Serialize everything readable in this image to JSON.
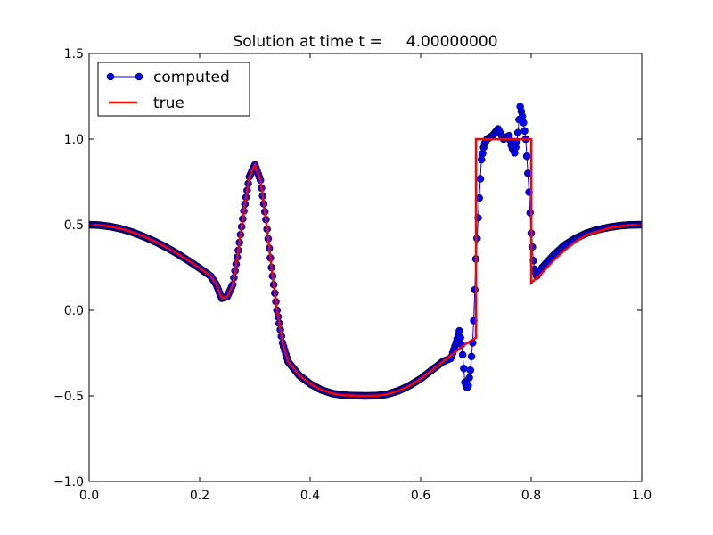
{
  "chart_data": {
    "type": "line",
    "title": "Solution at time t =     4.00000000",
    "xlabel": "",
    "ylabel": "",
    "xlim": [
      0.0,
      1.0
    ],
    "ylim": [
      -1.0,
      1.5
    ],
    "xticks": [
      0.0,
      0.2,
      0.4,
      0.6,
      0.8,
      1.0
    ],
    "xtick_labels": [
      "0.0",
      "0.2",
      "0.4",
      "0.6",
      "0.8",
      "1.0"
    ],
    "yticks": [
      -1.0,
      -0.5,
      0.0,
      0.5,
      1.0,
      1.5
    ],
    "ytick_labels": [
      "−1.0",
      "−0.5",
      "0.0",
      "0.5",
      "1.0",
      "1.5"
    ],
    "grid": false,
    "legend": {
      "position": "top-left"
    },
    "series": [
      {
        "name": "computed",
        "style": "line-with-circle-markers",
        "color": "#0000ff",
        "marker_edge": "#000000",
        "x": [
          0.0,
          0.02,
          0.04,
          0.06,
          0.08,
          0.1,
          0.12,
          0.14,
          0.16,
          0.18,
          0.2,
          0.22,
          0.23,
          0.24,
          0.25,
          0.26,
          0.27,
          0.28,
          0.29,
          0.3,
          0.31,
          0.32,
          0.33,
          0.34,
          0.35,
          0.36,
          0.38,
          0.4,
          0.42,
          0.44,
          0.46,
          0.48,
          0.5,
          0.52,
          0.54,
          0.56,
          0.58,
          0.6,
          0.62,
          0.64,
          0.655,
          0.665,
          0.67,
          0.675,
          0.68,
          0.685,
          0.69,
          0.695,
          0.7,
          0.705,
          0.71,
          0.715,
          0.72,
          0.73,
          0.74,
          0.75,
          0.76,
          0.765,
          0.77,
          0.775,
          0.78,
          0.785,
          0.79,
          0.795,
          0.8,
          0.805,
          0.81,
          0.82,
          0.84,
          0.86,
          0.88,
          0.9,
          0.92,
          0.94,
          0.96,
          0.98,
          1.0
        ],
        "y": [
          0.5,
          0.497,
          0.488,
          0.474,
          0.454,
          0.429,
          0.4,
          0.367,
          0.33,
          0.289,
          0.246,
          0.2,
          0.15,
          0.07,
          0.08,
          0.15,
          0.35,
          0.58,
          0.78,
          0.85,
          0.76,
          0.53,
          0.25,
          0.0,
          -0.19,
          -0.3,
          -0.38,
          -0.43,
          -0.465,
          -0.486,
          -0.496,
          -0.499,
          -0.5,
          -0.499,
          -0.49,
          -0.47,
          -0.44,
          -0.4,
          -0.35,
          -0.3,
          -0.28,
          -0.18,
          -0.12,
          -0.22,
          -0.42,
          -0.46,
          -0.35,
          -0.15,
          0.3,
          0.6,
          0.88,
          0.97,
          1.0,
          1.02,
          1.06,
          1.0,
          1.02,
          0.95,
          0.92,
          1.0,
          1.19,
          1.12,
          1.0,
          0.75,
          0.45,
          0.25,
          0.2,
          0.25,
          0.32,
          0.38,
          0.42,
          0.45,
          0.47,
          0.484,
          0.494,
          0.499,
          0.5
        ]
      },
      {
        "name": "true",
        "style": "line",
        "color": "#ff0000",
        "x": [
          0.0,
          0.02,
          0.04,
          0.06,
          0.08,
          0.1,
          0.12,
          0.14,
          0.16,
          0.18,
          0.2,
          0.22,
          0.23,
          0.24,
          0.25,
          0.26,
          0.27,
          0.28,
          0.29,
          0.3,
          0.31,
          0.32,
          0.33,
          0.34,
          0.35,
          0.36,
          0.38,
          0.4,
          0.42,
          0.44,
          0.46,
          0.48,
          0.5,
          0.52,
          0.54,
          0.56,
          0.58,
          0.6,
          0.62,
          0.64,
          0.66,
          0.68,
          0.7,
          0.7,
          0.8,
          0.8,
          0.82,
          0.84,
          0.86,
          0.88,
          0.9,
          0.92,
          0.94,
          0.96,
          0.98,
          1.0
        ],
        "y": [
          0.5,
          0.497,
          0.488,
          0.474,
          0.454,
          0.429,
          0.4,
          0.367,
          0.33,
          0.289,
          0.246,
          0.2,
          0.15,
          0.07,
          0.08,
          0.15,
          0.35,
          0.58,
          0.78,
          0.85,
          0.76,
          0.53,
          0.25,
          0.0,
          -0.19,
          -0.3,
          -0.38,
          -0.43,
          -0.465,
          -0.486,
          -0.496,
          -0.499,
          -0.5,
          -0.499,
          -0.49,
          -0.47,
          -0.44,
          -0.4,
          -0.35,
          -0.3,
          -0.25,
          -0.2,
          -0.16,
          1.0,
          1.0,
          0.16,
          0.22,
          0.29,
          0.35,
          0.4,
          0.44,
          0.46,
          0.48,
          0.49,
          0.498,
          0.5
        ]
      }
    ]
  }
}
